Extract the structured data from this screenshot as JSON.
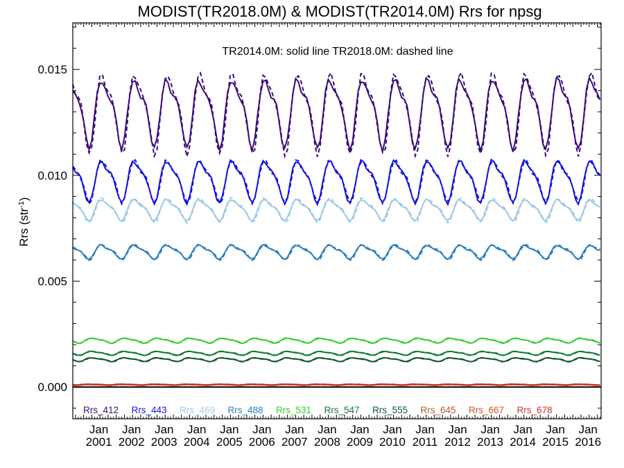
{
  "chart_data": {
    "type": "line",
    "title": "MODIST(TR2018.0M) & MODIST(TR2014.0M)  Rrs for npsg",
    "annotation": "TR2014.0M: solid line   TR2018.0M: dashed line",
    "ylabel": "Rrs (str",
    "ylabel_sup": "-1",
    "ylabel_close": ")",
    "xlim": [
      2000.2,
      2016.4
    ],
    "ylim": [
      -0.0015,
      0.0172
    ],
    "y_ticks": [
      {
        "value": 0.0,
        "label": "0.000"
      },
      {
        "value": 0.005,
        "label": "0.005"
      },
      {
        "value": 0.01,
        "label": "0.010"
      },
      {
        "value": 0.015,
        "label": "0.015"
      }
    ],
    "x_ticks": [
      {
        "value": 2001,
        "month": "Jan",
        "year": "2001"
      },
      {
        "value": 2002,
        "month": "Jan",
        "year": "2002"
      },
      {
        "value": 2003,
        "month": "Jan",
        "year": "2003"
      },
      {
        "value": 2004,
        "month": "Jan",
        "year": "2004"
      },
      {
        "value": 2005,
        "month": "Jan",
        "year": "2005"
      },
      {
        "value": 2006,
        "month": "Jan",
        "year": "2006"
      },
      {
        "value": 2007,
        "month": "Jan",
        "year": "2007"
      },
      {
        "value": 2008,
        "month": "Jan",
        "year": "2008"
      },
      {
        "value": 2009,
        "month": "Jan",
        "year": "2009"
      },
      {
        "value": 2010,
        "month": "Jan",
        "year": "2010"
      },
      {
        "value": 2011,
        "month": "Jan",
        "year": "2011"
      },
      {
        "value": 2012,
        "month": "Jan",
        "year": "2012"
      },
      {
        "value": 2013,
        "month": "Jan",
        "year": "2013"
      },
      {
        "value": 2014,
        "month": "Jan",
        "year": "2014"
      },
      {
        "value": 2015,
        "month": "Jan",
        "year": "2015"
      },
      {
        "value": 2016,
        "month": "Jan",
        "year": "2016"
      }
    ],
    "x_start": 2000.2,
    "step_months": 1,
    "series": [
      {
        "name": "Rrs_412",
        "color": "#3a0c78",
        "mean": 0.0131,
        "amp": 0.0017,
        "amp_dashed": 0.0019,
        "phase": 0.9
      },
      {
        "name": "Rrs_443",
        "color": "#1414e0",
        "mean": 0.0098,
        "amp": 0.001,
        "amp_dashed": 0.001,
        "phase": 0.9
      },
      {
        "name": "Rrs_469",
        "color": "#9ecae8",
        "mean": 0.0084,
        "amp": 0.0005,
        "amp_dashed": 0.0006,
        "phase": 0.9
      },
      {
        "name": "Rrs_488",
        "color": "#2a7fc1",
        "mean": 0.0064,
        "amp": 0.00035,
        "amp_dashed": 0.0004,
        "phase": 0.9
      },
      {
        "name": "Rrs_531",
        "color": "#33cc33",
        "mean": 0.0022,
        "amp": 0.00012,
        "amp_dashed": 0.00012,
        "phase": 0.6
      },
      {
        "name": "Rrs_547",
        "color": "#0f7a3c",
        "mean": 0.0016,
        "amp": 0.0001,
        "amp_dashed": 0.0001,
        "phase": 0.6
      },
      {
        "name": "Rrs_555",
        "color": "#0d5a2e",
        "mean": 0.0013,
        "amp": 0.0001,
        "amp_dashed": 0.0001,
        "phase": 0.6
      },
      {
        "name": "Rrs_645",
        "color": "#b35a2a",
        "mean": 0.00012,
        "amp": 2e-05,
        "amp_dashed": 2e-05,
        "phase": 0.5
      },
      {
        "name": "Rrs_667",
        "color": "#d4561a",
        "mean": 0.0001,
        "amp": 2e-05,
        "amp_dashed": 2e-05,
        "phase": 0.5
      },
      {
        "name": "Rrs_678",
        "color": "#c8322a",
        "mean": 0.00011,
        "amp": 2e-05,
        "amp_dashed": 2e-05,
        "phase": 0.5
      }
    ],
    "zero_line": true,
    "grid": false,
    "legend_position": "bottom"
  }
}
